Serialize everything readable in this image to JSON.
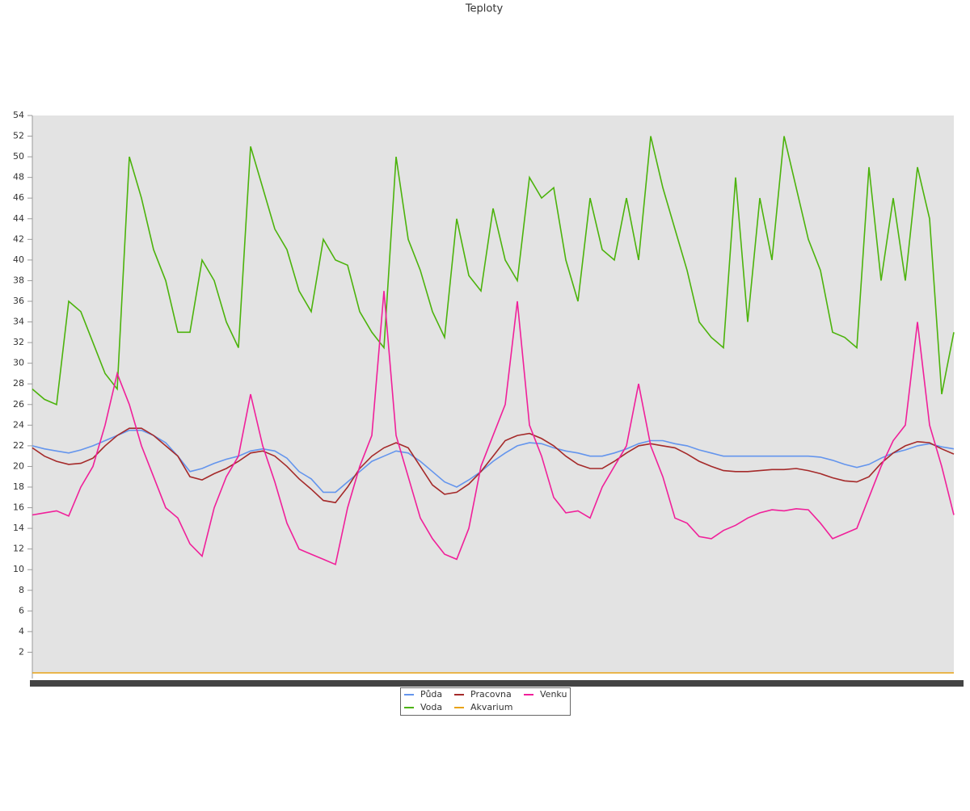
{
  "chart_data": {
    "type": "line",
    "title": "Teploty",
    "categories": [
      null,
      null,
      null,
      null,
      null,
      null,
      null,
      null,
      null,
      null,
      null,
      null,
      null,
      null,
      null,
      null,
      null,
      null,
      null,
      null,
      null,
      null,
      null,
      null,
      null,
      null,
      null,
      null,
      null,
      null,
      null,
      null,
      null,
      null,
      null,
      null,
      null,
      null,
      null,
      null,
      null,
      null,
      null,
      null,
      null,
      null,
      null,
      null,
      null,
      null,
      null,
      null,
      null,
      null,
      null,
      null,
      null,
      null,
      null,
      null,
      null,
      null,
      null,
      null,
      null,
      null,
      null,
      null,
      null,
      null,
      null,
      null,
      null,
      null,
      null,
      null,
      null
    ],
    "ylim": [
      0,
      54
    ],
    "yticks": [
      2,
      4,
      6,
      8,
      10,
      12,
      14,
      16,
      18,
      20,
      22,
      24,
      26,
      28,
      30,
      32,
      34,
      36,
      38,
      40,
      42,
      44,
      46,
      48,
      50,
      52,
      54
    ],
    "series": [
      {
        "name": "Půda",
        "color": "#6495ed",
        "values": [
          22,
          21.7,
          21.5,
          21.3,
          21.6,
          22,
          22.5,
          23,
          23.5,
          23.5,
          23,
          22.3,
          21,
          19.5,
          19.8,
          20.3,
          20.7,
          21,
          21.5,
          21.7,
          21.5,
          20.8,
          19.5,
          18.8,
          17.5,
          17.5,
          18.5,
          19.5,
          20.5,
          21,
          21.5,
          21.3,
          20.5,
          19.5,
          18.5,
          18,
          18.7,
          19.5,
          20.5,
          21.3,
          22,
          22.3,
          22.2,
          21.8,
          21.5,
          21.3,
          21,
          21,
          21.3,
          21.7,
          22.2,
          22.5,
          22.5,
          22.2,
          22,
          21.6,
          21.3,
          21,
          21,
          21,
          21,
          21,
          21,
          21,
          21,
          20.9,
          20.6,
          20.2,
          19.9,
          20.2,
          20.8,
          21.3,
          21.6,
          22,
          22.2,
          21.9,
          21.7
        ]
      },
      {
        "name": "Voda",
        "color": "#4cb30c",
        "values": [
          27.5,
          26.5,
          26,
          36,
          35,
          32,
          29,
          27.5,
          50,
          46,
          41,
          38,
          33,
          33,
          40,
          38,
          34,
          31.5,
          51,
          47,
          43,
          41,
          37,
          35,
          42,
          40,
          39.5,
          35,
          33,
          31.5,
          50,
          42,
          39,
          35,
          32.5,
          44,
          38.5,
          37,
          45,
          40,
          38,
          48,
          46,
          47,
          40,
          36,
          46,
          41,
          40,
          46,
          40,
          52,
          47,
          43,
          39,
          34,
          32.5,
          31.5,
          48,
          34,
          46,
          40,
          52,
          47,
          42,
          39,
          33,
          32.5,
          31.5,
          49,
          38,
          46,
          38,
          49,
          44,
          27,
          33
        ]
      },
      {
        "name": "Pracovna",
        "color": "#a52a2a",
        "values": [
          21.8,
          21,
          20.5,
          20.2,
          20.3,
          20.8,
          22,
          23,
          23.7,
          23.7,
          23,
          22,
          21,
          19,
          18.7,
          19.3,
          19.8,
          20.5,
          21.3,
          21.5,
          21,
          20,
          18.8,
          17.8,
          16.7,
          16.5,
          18,
          19.8,
          21,
          21.8,
          22.3,
          21.8,
          20,
          18.2,
          17.3,
          17.5,
          18.3,
          19.5,
          21,
          22.5,
          23,
          23.2,
          22.7,
          22,
          21,
          20.2,
          19.8,
          19.8,
          20.5,
          21.3,
          22,
          22.2,
          22,
          21.8,
          21.2,
          20.5,
          20,
          19.6,
          19.5,
          19.5,
          19.6,
          19.7,
          19.7,
          19.8,
          19.6,
          19.3,
          18.9,
          18.6,
          18.5,
          19,
          20.3,
          21.3,
          22,
          22.4,
          22.3,
          21.7,
          21.2
        ]
      },
      {
        "name": "Akvarium",
        "color": "#e8a317",
        "values": [
          0,
          0,
          0,
          0,
          0,
          0,
          0,
          0,
          0,
          0,
          0,
          0,
          0,
          0,
          0,
          0,
          0,
          0,
          0,
          0,
          0,
          0,
          0,
          0,
          0,
          0,
          0,
          0,
          0,
          0,
          0,
          0,
          0,
          0,
          0,
          0,
          0,
          0,
          0,
          0,
          0,
          0,
          0,
          0,
          0,
          0,
          0,
          0,
          0,
          0,
          0,
          0,
          0,
          0,
          0,
          0,
          0,
          0,
          0,
          0,
          0,
          0,
          0,
          0,
          0,
          0,
          0,
          0,
          0,
          0,
          0,
          0,
          0,
          0,
          0,
          0,
          0
        ]
      },
      {
        "name": "Venku",
        "color": "#f0209a",
        "values": [
          15.3,
          15.5,
          15.7,
          15.2,
          18,
          20,
          24,
          29,
          26,
          22,
          19,
          16,
          15,
          12.5,
          11.3,
          16,
          19,
          21,
          27,
          22,
          18.5,
          14.5,
          12,
          11.5,
          11,
          10.5,
          16,
          20,
          23,
          37,
          23,
          19,
          15,
          13,
          11.5,
          11,
          14,
          20,
          23,
          26,
          36,
          24,
          21,
          17,
          15.5,
          15.7,
          15,
          18,
          20,
          22,
          28,
          22,
          19,
          15,
          14.5,
          13.2,
          13,
          13.8,
          14.3,
          15,
          15.5,
          15.8,
          15.7,
          15.9,
          15.8,
          14.5,
          13,
          13.5,
          14,
          17,
          20,
          22.5,
          24,
          34,
          24,
          20,
          15.3
        ]
      }
    ]
  }
}
